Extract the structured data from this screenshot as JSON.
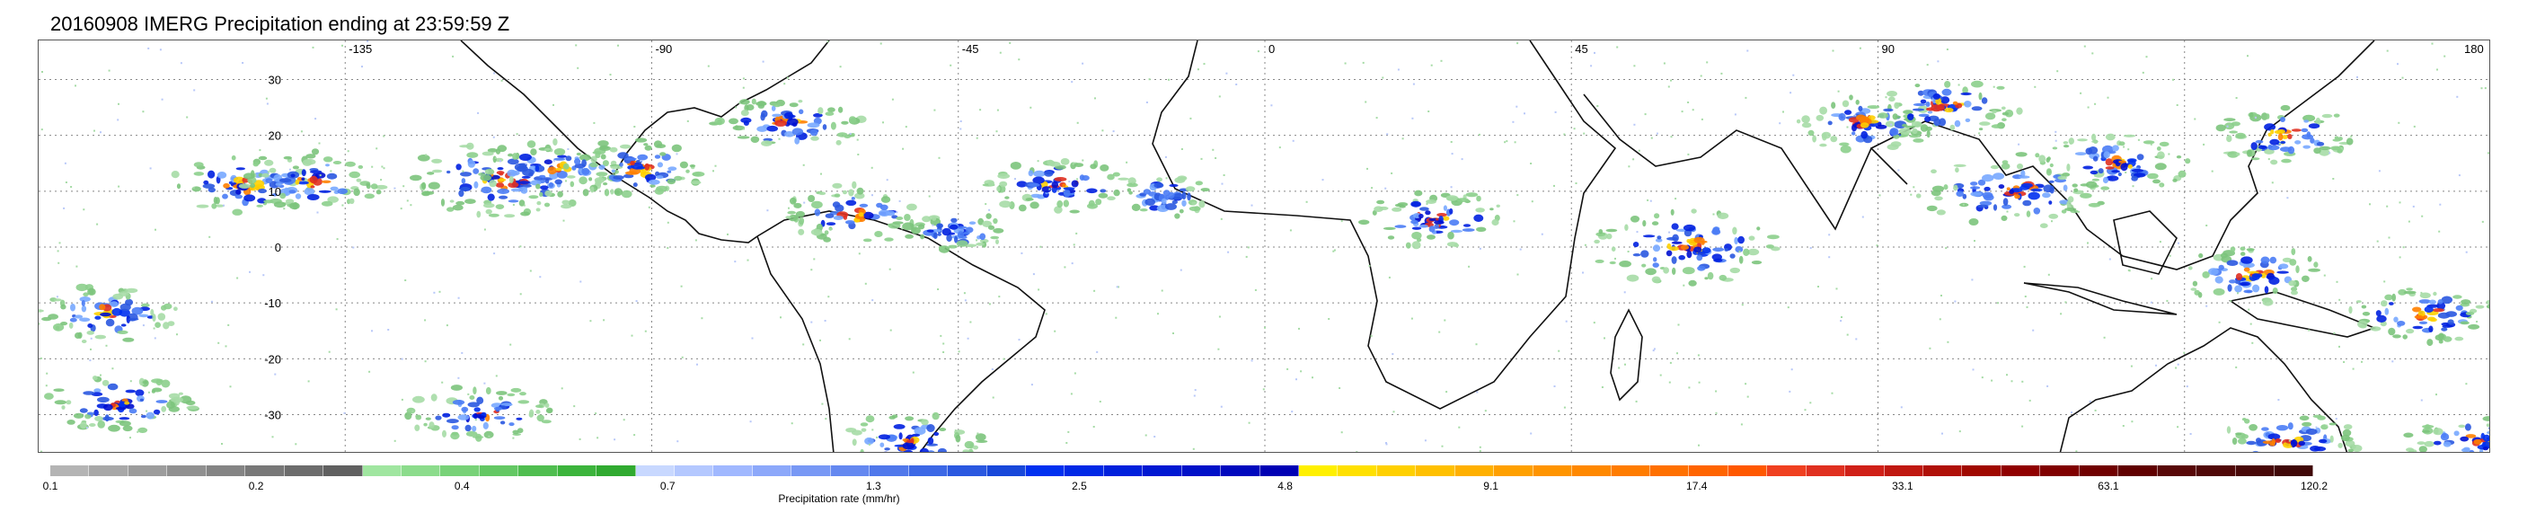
{
  "title": "20160908 IMERG Precipitation ending at 23:59:59 Z",
  "map": {
    "projection": "equirectangular",
    "lon_range": [
      -180,
      180
    ],
    "lat_range": [
      -37,
      37
    ],
    "lon_labels": [
      "-135",
      "-90",
      "-45",
      "0",
      "45",
      "90",
      "180"
    ],
    "lat_labels": [
      "30",
      "20",
      "10",
      "0",
      "-10",
      "-20",
      "-30"
    ],
    "gridlines": true,
    "gridline_style": "dotted"
  },
  "colorbar": {
    "title": "Precipitation rate (mm/hr)",
    "tick_labels": [
      "0.1",
      "0.2",
      "0.4",
      "0.7",
      "1.3",
      "2.5",
      "4.8",
      "9.1",
      "17.4",
      "33.1",
      "63.1",
      "120.2"
    ],
    "colors": [
      "#b4b4b4",
      "#a8a8a8",
      "#9c9c9c",
      "#909090",
      "#848484",
      "#787878",
      "#6c6c6c",
      "#606060",
      "#a0e6a0",
      "#8cdc8c",
      "#78d278",
      "#64c864",
      "#50be50",
      "#3cb43c",
      "#30aa30",
      "#c8d8ff",
      "#b4c8ff",
      "#a0b8ff",
      "#8ca8fa",
      "#7898f5",
      "#6488f0",
      "#5078eb",
      "#3c68e6",
      "#2a58e0",
      "#1848da",
      "#0030f0",
      "#0028e6",
      "#0020dc",
      "#0018d2",
      "#0010c8",
      "#0008be",
      "#0000b4",
      "#fff000",
      "#ffe000",
      "#ffd000",
      "#ffc000",
      "#ffb000",
      "#ffa000",
      "#ff9400",
      "#ff8800",
      "#ff7c00",
      "#ff7000",
      "#ff6400",
      "#ff5800",
      "#f04020",
      "#e03020",
      "#d02018",
      "#c01810",
      "#b01008",
      "#a00800",
      "#900000",
      "#800000",
      "#700000",
      "#600000",
      "#580808",
      "#500808",
      "#480808",
      "#400808"
    ]
  },
  "precip_cells": [
    {
      "lon": -150,
      "lat": 11,
      "level": 2
    },
    {
      "lon": -140,
      "lat": 12,
      "level": 2
    },
    {
      "lon": -112,
      "lat": 12,
      "level": 3
    },
    {
      "lon": -105,
      "lat": 14,
      "level": 2
    },
    {
      "lon": -92,
      "lat": 14,
      "level": 2
    },
    {
      "lon": -70,
      "lat": 22,
      "level": 2
    },
    {
      "lon": -60,
      "lat": 6,
      "level": 2
    },
    {
      "lon": -45,
      "lat": 3,
      "level": 1
    },
    {
      "lon": -30,
      "lat": 11,
      "level": 2
    },
    {
      "lon": -15,
      "lat": 9,
      "level": 1
    },
    {
      "lon": 25,
      "lat": 5,
      "level": 2
    },
    {
      "lon": 62,
      "lat": 0,
      "level": 3
    },
    {
      "lon": 88,
      "lat": 22,
      "level": 2
    },
    {
      "lon": 100,
      "lat": 25,
      "level": 2
    },
    {
      "lon": 110,
      "lat": 10,
      "level": 3
    },
    {
      "lon": 125,
      "lat": 15,
      "level": 2
    },
    {
      "lon": 150,
      "lat": 20,
      "level": 2
    },
    {
      "lon": 145,
      "lat": -5,
      "level": 2
    },
    {
      "lon": 170,
      "lat": -12,
      "level": 2
    },
    {
      "lon": -170,
      "lat": -12,
      "level": 2
    },
    {
      "lon": -168,
      "lat": -28,
      "level": 2
    },
    {
      "lon": -115,
      "lat": -30,
      "level": 2
    },
    {
      "lon": -52,
      "lat": -35,
      "level": 2
    },
    {
      "lon": 150,
      "lat": -35,
      "level": 2
    },
    {
      "lon": 178,
      "lat": -35,
      "level": 2
    }
  ]
}
